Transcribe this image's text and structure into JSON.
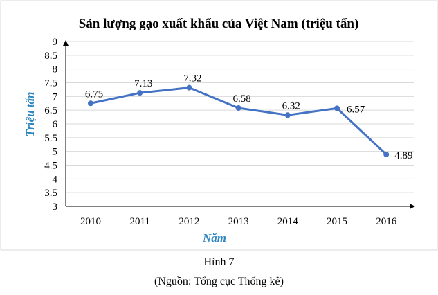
{
  "chart_data": {
    "type": "line",
    "title": "Sản lượng gạo xuất khẩu của Việt Nam (triệu tấn)",
    "xlabel": "Năm",
    "ylabel": "Triệu tấn",
    "categories": [
      "2010",
      "2011",
      "2012",
      "2013",
      "2014",
      "2015",
      "2016"
    ],
    "values": [
      6.75,
      7.13,
      7.32,
      6.58,
      6.32,
      6.57,
      4.89
    ],
    "data_labels": [
      "6.75",
      "7.13",
      "7.32",
      "6.58",
      "6.32",
      "6.57",
      "4.89"
    ],
    "ylim": [
      3,
      9
    ],
    "yticks": [
      "3",
      "3.5",
      "4",
      "4.5",
      "5",
      "5.5",
      "6",
      "6.5",
      "7",
      "7.5",
      "8",
      "8.5",
      "9"
    ],
    "grid": true,
    "series_color": "#4472c4",
    "grid_color": "#d9d9d9",
    "axis_title_color": "#2e86c1"
  },
  "caption": {
    "figure": "Hình 7",
    "source": "(Nguồn: Tổng cục Thống kê)"
  }
}
